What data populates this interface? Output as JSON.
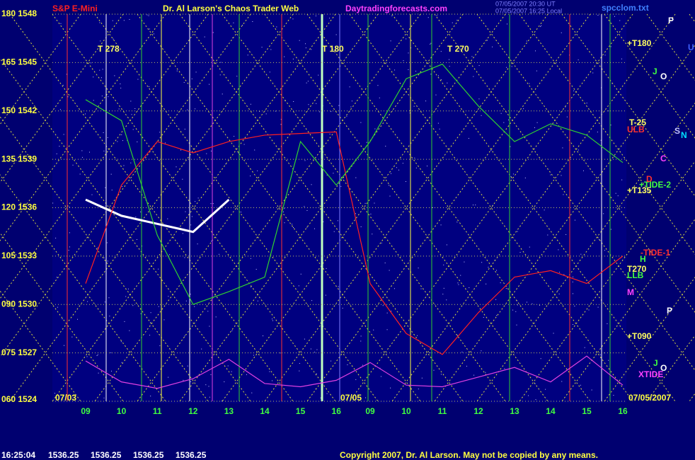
{
  "chart_data": {
    "type": "line",
    "title": "Dr. Al Larson's Chaos Trader Web",
    "symbol": "S&P E-Mini",
    "site": "Daytradingforecasts.com",
    "file": "spcclom.txt",
    "stamp_lines": [
      "07/05/2007 20:30 UT",
      "07/05/2007 16:25 Local"
    ],
    "categories": [
      "09",
      "10",
      "11",
      "12",
      "13",
      "14",
      "15",
      "16",
      "09",
      "10",
      "11",
      "12",
      "13",
      "14",
      "15",
      "16"
    ],
    "day_labels": [
      "07/03",
      "07/05",
      "07/05/2007"
    ],
    "ylim": [
      1524,
      1548
    ],
    "yticks": [
      {
        "value": 1548,
        "label": "180 1548"
      },
      {
        "value": 1545,
        "label": "165 1545"
      },
      {
        "value": 1542,
        "label": "150 1542"
      },
      {
        "value": 1539,
        "label": "135 1539"
      },
      {
        "value": 1536,
        "label": "120 1536"
      },
      {
        "value": 1533,
        "label": "105 1533"
      },
      {
        "value": 1530,
        "label": "090 1530"
      },
      {
        "value": 1527,
        "label": "075 1527"
      },
      {
        "value": 1524,
        "label": "060 1524"
      }
    ],
    "series": [
      {
        "color": "#ffffff",
        "values": [
          1536.5,
          1535.5,
          1535,
          1534.5,
          1536.5,
          null,
          null,
          null,
          null,
          null,
          null,
          null,
          null,
          null,
          null,
          null
        ]
      },
      {
        "color": "#ff2020",
        "values": [
          1531.3,
          1537.4,
          1540.1,
          1539.4,
          1540.1,
          1540.5,
          1540.6,
          1540.7,
          1531.3,
          1528.2,
          1526.9,
          1529.5,
          1531.7,
          1532.1,
          1531.3,
          1533
        ]
      },
      {
        "color": "#30d030",
        "values": [
          1542.7,
          1541.4,
          1534.3,
          1530,
          1530.8,
          1531.7,
          1540.1,
          1537.4,
          1540.1,
          1544,
          1544.9,
          1542.3,
          1540.1,
          1541.2,
          1540.5,
          1538.8
        ]
      },
      {
        "color": "#e040e0",
        "values": [
          1526.5,
          1525.2,
          1524.8,
          1525.4,
          1526.6,
          1525.1,
          1524.9,
          1525.3,
          1526.4,
          1525,
          1524.9,
          1525.5,
          1526.1,
          1525.2,
          1526.8,
          1525
        ]
      }
    ],
    "annotations": [
      {
        "text": "T 278",
        "color": "#ffff60"
      },
      {
        "text": "T 180",
        "color": "#ffff60"
      },
      {
        "text": "T 270",
        "color": "#ffff60"
      },
      {
        "text": "+T180",
        "color": "#ffff60"
      },
      {
        "text": "T-25",
        "color": "#ffff60"
      },
      {
        "text": "ULB",
        "color": "#ff3030"
      },
      {
        "text": "+TIDE-2",
        "color": "#40ff40"
      },
      {
        "text": "+T135",
        "color": "#ffff60"
      },
      {
        "text": "-TIDE-1",
        "color": "#ff3030"
      },
      {
        "text": "T270",
        "color": "#ffff60"
      },
      {
        "text": "LLB",
        "color": "#40ff40"
      },
      {
        "text": "+T090",
        "color": "#ffff60"
      },
      {
        "text": "XTIDE",
        "color": "#ff40ff"
      },
      {
        "text": "P",
        "color": "#ffffff"
      },
      {
        "text": "U",
        "color": "#4060ff"
      },
      {
        "text": "J",
        "color": "#40ff40"
      },
      {
        "text": "O",
        "color": "#ffffff"
      },
      {
        "text": "S",
        "color": "#c0c0ff"
      },
      {
        "text": "N",
        "color": "#00e0ff"
      },
      {
        "text": "C",
        "color": "#ff40ff"
      },
      {
        "text": "D",
        "color": "#ff3030"
      },
      {
        "text": "H",
        "color": "#40ff40"
      },
      {
        "text": "M",
        "color": "#ff40ff"
      },
      {
        "text": "P",
        "color": "#ffffff"
      },
      {
        "text": "J",
        "color": "#40ff40"
      },
      {
        "text": "O",
        "color": "#ffffff"
      }
    ],
    "status": [
      "16:25:04",
      "1536.25",
      "1536.25",
      "1536.25",
      "1536.25"
    ],
    "copyright": "Copyright 2007, Dr. Al Larson. May not be copied by any means."
  }
}
